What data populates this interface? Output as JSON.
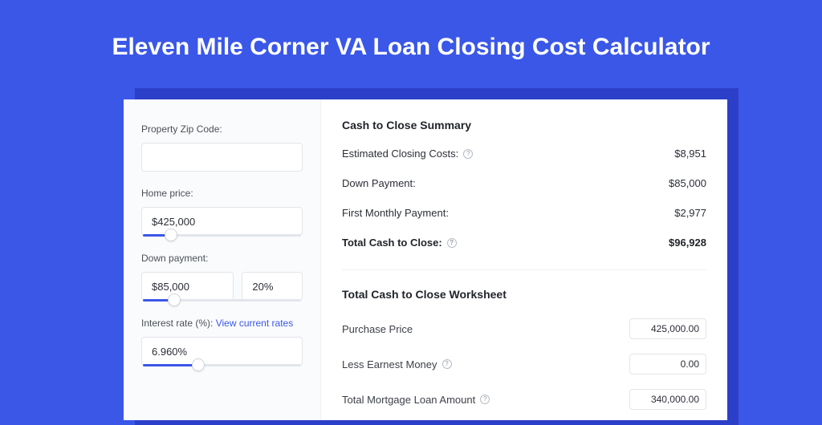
{
  "header": {
    "title": "Eleven Mile Corner VA Loan Closing Cost Calculator"
  },
  "colors": {
    "page_bg": "#3a57e8",
    "shadow_bg": "#2b3fc8",
    "panel_bg": "#ffffff",
    "left_bg": "#fafbfc",
    "accent": "#3a57e8",
    "border": "#e2e5ea"
  },
  "inputs": {
    "zip": {
      "label": "Property Zip Code:",
      "value": ""
    },
    "home_price": {
      "label": "Home price:",
      "value": "$425,000",
      "slider_pct": 18
    },
    "down_payment": {
      "label": "Down payment:",
      "value": "$85,000",
      "percent": "20%",
      "slider_pct": 20
    },
    "interest_rate": {
      "label": "Interest rate (%):",
      "link_text": "View current rates",
      "value": "6.960%",
      "slider_pct": 35
    }
  },
  "summary": {
    "title": "Cash to Close Summary",
    "rows": [
      {
        "label": "Estimated Closing Costs:",
        "has_help": true,
        "value": "$8,951"
      },
      {
        "label": "Down Payment:",
        "has_help": false,
        "value": "$85,000"
      },
      {
        "label": "First Monthly Payment:",
        "has_help": false,
        "value": "$2,977"
      }
    ],
    "total": {
      "label": "Total Cash to Close:",
      "has_help": true,
      "value": "$96,928"
    }
  },
  "worksheet": {
    "title": "Total Cash to Close Worksheet",
    "rows": [
      {
        "label": "Purchase Price",
        "has_help": false,
        "value": "425,000.00"
      },
      {
        "label": "Less Earnest Money",
        "has_help": true,
        "value": "0.00"
      },
      {
        "label": "Total Mortgage Loan Amount",
        "has_help": true,
        "value": "340,000.00"
      }
    ]
  }
}
